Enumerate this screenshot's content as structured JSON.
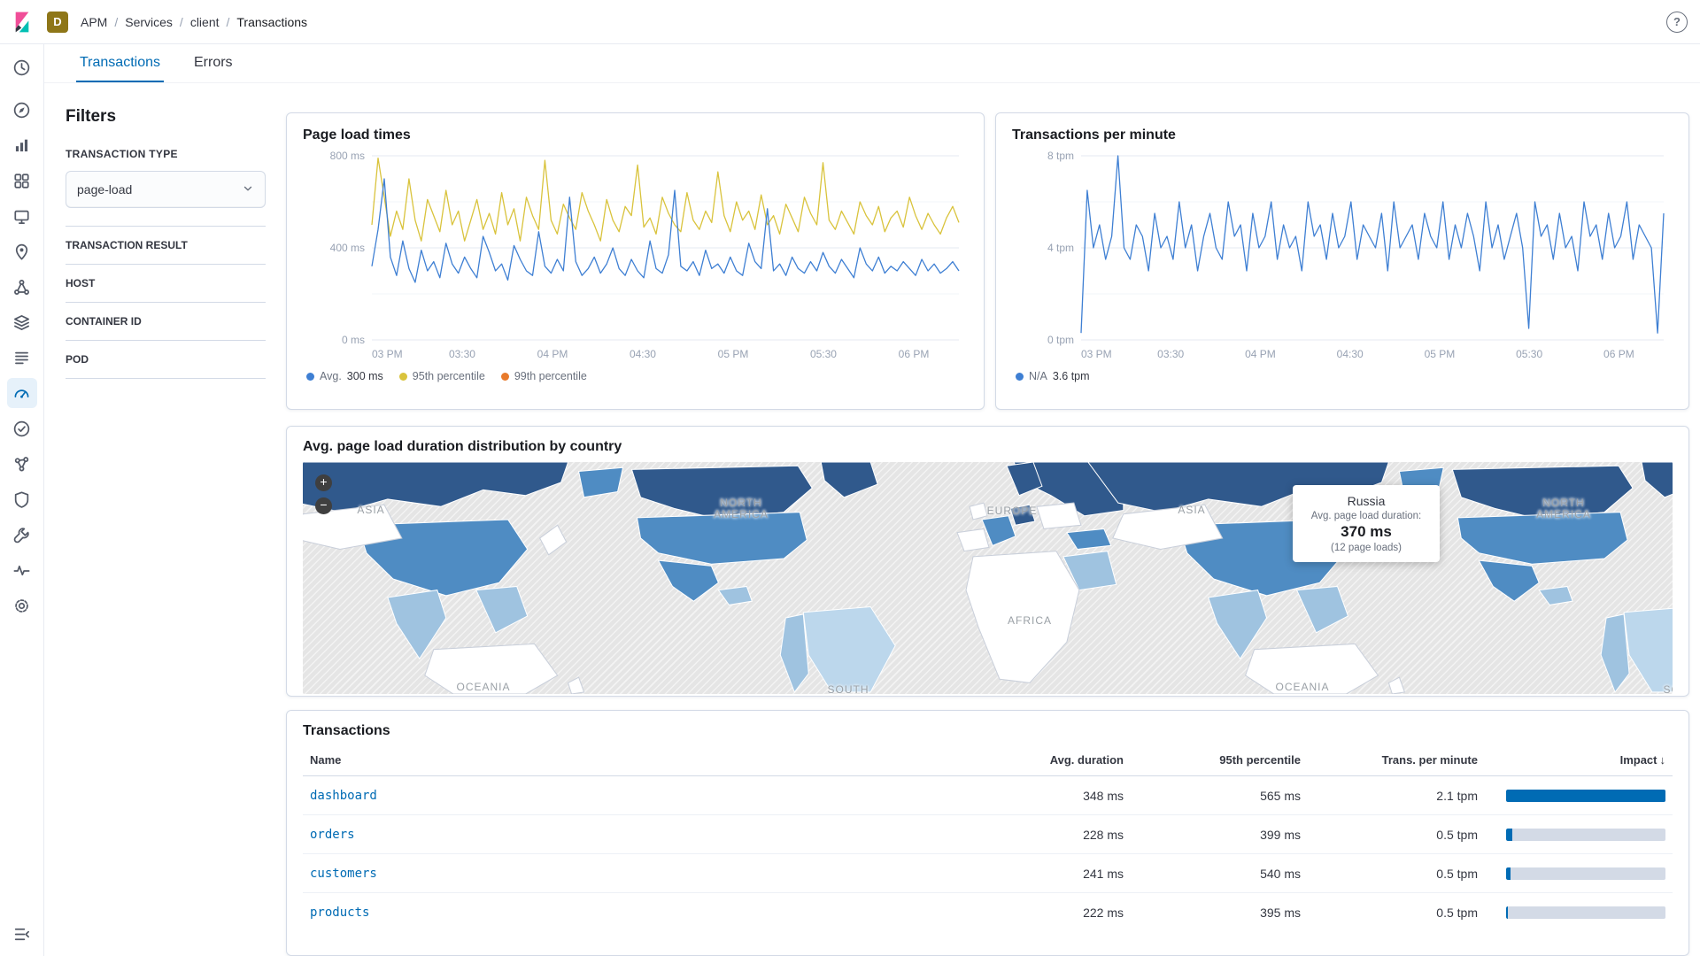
{
  "topbar": {
    "breadcrumb": [
      "APM",
      "Services",
      "client",
      "Transactions"
    ],
    "separator": "/",
    "space_badge": "D",
    "space_badge_color": "#8E7618",
    "help_glyph": "?"
  },
  "sidebar": {
    "top": [
      {
        "id": "recently-viewed",
        "icon": "clock"
      }
    ],
    "apps": [
      {
        "id": "discover",
        "icon": "discover"
      },
      {
        "id": "visualize",
        "icon": "visualize"
      },
      {
        "id": "dashboard",
        "icon": "dashboard"
      },
      {
        "id": "canvas",
        "icon": "canvas"
      },
      {
        "id": "maps",
        "icon": "maps"
      },
      {
        "id": "machine-learning",
        "icon": "ml"
      },
      {
        "id": "infrastructure",
        "icon": "infrastructure"
      },
      {
        "id": "logs",
        "icon": "logs"
      },
      {
        "id": "apm",
        "icon": "apm",
        "active": true
      },
      {
        "id": "uptime",
        "icon": "uptime"
      },
      {
        "id": "graph",
        "icon": "graph"
      },
      {
        "id": "siem",
        "icon": "siem"
      },
      {
        "id": "dev-tools",
        "icon": "devtools"
      },
      {
        "id": "monitoring",
        "icon": "monitoring"
      },
      {
        "id": "management",
        "icon": "management"
      }
    ],
    "bottom": [
      {
        "id": "collapse-nav",
        "icon": "collapse"
      }
    ]
  },
  "tabs": [
    {
      "label": "Transactions",
      "active": true
    },
    {
      "label": "Errors",
      "active": false
    }
  ],
  "filters": {
    "title": "Filters",
    "type_label": "TRANSACTION TYPE",
    "type_value": "page-load",
    "sections": [
      "TRANSACTION RESULT",
      "HOST",
      "CONTAINER ID",
      "POD"
    ]
  },
  "chart_data": [
    {
      "id": "pageload",
      "type": "line",
      "title": "Page load times",
      "ylim": [
        0,
        800
      ],
      "y_ticks": [
        {
          "v": 0,
          "label": "0 ms"
        },
        {
          "v": 400,
          "label": "400 ms"
        },
        {
          "v": 800,
          "label": "800 ms"
        }
      ],
      "y_minor": [
        200,
        600
      ],
      "x_ticks": [
        {
          "f": 0,
          "label": "03 PM"
        },
        {
          "f": 0.1538,
          "label": "03:30"
        },
        {
          "f": 0.3077,
          "label": "04 PM"
        },
        {
          "f": 0.4615,
          "label": "04:30"
        },
        {
          "f": 0.6154,
          "label": "05 PM"
        },
        {
          "f": 0.7692,
          "label": "05:30"
        },
        {
          "f": 0.9231,
          "label": "06 PM"
        }
      ],
      "legend": [
        {
          "label": "Avg.",
          "value": "300 ms",
          "color": "#3E7FD3"
        },
        {
          "label": "95th percentile",
          "value": "",
          "color": "#D9C33C"
        },
        {
          "label": "99th percentile",
          "value": "",
          "color": "#E87A2B"
        }
      ],
      "series": [
        {
          "name": "95th percentile",
          "color": "#D9C33C",
          "values": [
            500,
            790,
            620,
            450,
            560,
            480,
            700,
            520,
            430,
            610,
            540,
            470,
            650,
            500,
            560,
            430,
            520,
            610,
            480,
            550,
            460,
            640,
            500,
            570,
            430,
            620,
            540,
            480,
            780,
            520,
            460,
            590,
            530,
            480,
            640,
            560,
            500,
            430,
            610,
            520,
            470,
            580,
            540,
            760,
            490,
            530,
            460,
            620,
            550,
            500,
            470,
            640,
            520,
            480,
            560,
            510,
            730,
            540,
            470,
            600,
            520,
            560,
            480,
            630,
            500,
            540,
            460,
            590,
            530,
            470,
            620,
            550,
            500,
            770,
            520,
            480,
            560,
            510,
            460,
            600,
            540,
            500,
            580,
            470,
            530,
            560,
            490,
            620,
            540,
            480,
            550,
            500,
            460,
            530,
            580,
            510
          ]
        },
        {
          "name": "Avg.",
          "color": "#3E7FD3",
          "values": [
            320,
            480,
            700,
            360,
            280,
            430,
            310,
            250,
            390,
            300,
            340,
            270,
            420,
            330,
            290,
            360,
            310,
            270,
            450,
            380,
            300,
            330,
            260,
            410,
            350,
            300,
            280,
            470,
            320,
            290,
            350,
            300,
            620,
            340,
            280,
            310,
            360,
            290,
            330,
            400,
            310,
            280,
            350,
            300,
            270,
            430,
            310,
            290,
            370,
            650,
            320,
            300,
            340,
            280,
            390,
            310,
            330,
            290,
            360,
            300,
            280,
            420,
            340,
            310,
            570,
            300,
            330,
            280,
            360,
            310,
            290,
            340,
            300,
            380,
            320,
            290,
            350,
            310,
            270,
            400,
            330,
            300,
            360,
            290,
            320,
            300,
            340,
            310,
            280,
            350,
            300,
            330,
            290,
            310,
            340,
            300
          ]
        },
        {
          "name": "99th percentile",
          "color": "#E87A2B",
          "values": []
        }
      ]
    },
    {
      "id": "tpm",
      "type": "line",
      "title": "Transactions per minute",
      "ylim": [
        0,
        8
      ],
      "y_ticks": [
        {
          "v": 0,
          "label": "0 tpm"
        },
        {
          "v": 4,
          "label": "4 tpm"
        },
        {
          "v": 8,
          "label": "8 tpm"
        }
      ],
      "y_minor": [
        2,
        6
      ],
      "x_ticks": [
        {
          "f": 0,
          "label": "03 PM"
        },
        {
          "f": 0.1538,
          "label": "03:30"
        },
        {
          "f": 0.3077,
          "label": "04 PM"
        },
        {
          "f": 0.4615,
          "label": "04:30"
        },
        {
          "f": 0.6154,
          "label": "05 PM"
        },
        {
          "f": 0.7692,
          "label": "05:30"
        },
        {
          "f": 0.9231,
          "label": "06 PM"
        }
      ],
      "legend": [
        {
          "label": "N/A",
          "value": "3.6 tpm",
          "color": "#3E7FD3"
        }
      ],
      "series": [
        {
          "name": "N/A",
          "color": "#3E7FD3",
          "values": [
            0.3,
            6.5,
            4,
            5,
            3.5,
            4.5,
            8,
            4,
            3.5,
            5,
            4.5,
            3,
            5.5,
            4,
            4.5,
            3.5,
            6,
            4,
            5,
            3,
            4.5,
            5.5,
            4,
            3.5,
            6,
            4.5,
            5,
            3,
            5.5,
            4,
            4.5,
            6,
            3.5,
            5,
            4,
            4.5,
            3,
            6,
            4.5,
            5,
            3.5,
            5.5,
            4,
            4.5,
            6,
            3.5,
            5,
            4.5,
            4,
            5.5,
            3,
            6,
            4,
            4.5,
            5,
            3.5,
            5.5,
            4.5,
            4,
            6,
            3.5,
            5,
            4,
            5.5,
            4.5,
            3,
            6,
            4,
            5,
            3.5,
            4.5,
            5.5,
            4,
            0.5,
            6,
            4.5,
            5,
            3.5,
            5.5,
            4,
            4.5,
            3,
            6,
            4.5,
            5,
            3.5,
            5.5,
            4,
            4.5,
            6,
            3.5,
            5,
            4.5,
            4,
            0.3,
            5.5
          ]
        }
      ]
    },
    {
      "id": "country-map",
      "type": "choropleth",
      "title": "Avg. page load duration distribution by country",
      "labels": {
        "asia": "ASIA",
        "north_america": "NORTH AMERICA",
        "europe": "EUROPE",
        "africa": "AFRICA",
        "south_america": "SOUTH AMERICA",
        "oceania": "OCEANIA"
      },
      "tooltip": {
        "country": "Russia",
        "metric": "Avg. page load duration:",
        "value": "370 ms",
        "note": "(12 page loads)"
      },
      "zoom_in": "+",
      "zoom_out": "−",
      "shade_colors": {
        "dark": "#30598C",
        "medium": "#4F8CC3",
        "light": "#9FC3E0",
        "lighter": "#BCD7EC",
        "none": "#FFFFFF"
      },
      "regions": [
        {
          "name": "Russia",
          "shade": "dark",
          "value": "370 ms"
        },
        {
          "name": "Canada",
          "shade": "dark"
        },
        {
          "name": "Greenland",
          "shade": "dark"
        },
        {
          "name": "Scandinavia",
          "shade": "dark"
        },
        {
          "name": "United States",
          "shade": "medium"
        },
        {
          "name": "China",
          "shade": "medium"
        },
        {
          "name": "Mexico",
          "shade": "medium"
        },
        {
          "name": "India",
          "shade": "light"
        },
        {
          "name": "Saudi Arabia",
          "shade": "light"
        },
        {
          "name": "Brazil",
          "shade": "lighter"
        },
        {
          "name": "Africa",
          "shade": "none"
        },
        {
          "name": "Australia",
          "shade": "none"
        }
      ]
    }
  ],
  "table": {
    "title": "Transactions",
    "columns": [
      "Name",
      "Avg. duration",
      "95th percentile",
      "Trans. per minute",
      "Impact"
    ],
    "sorted_by": "Impact",
    "sort_arrow": "↓",
    "rows": [
      {
        "name": "dashboard",
        "avg": "348 ms",
        "p95": "565 ms",
        "tpm": "2.1 tpm",
        "impact": 100
      },
      {
        "name": "orders",
        "avg": "228 ms",
        "p95": "399 ms",
        "tpm": "0.5 tpm",
        "impact": 4
      },
      {
        "name": "customers",
        "avg": "241 ms",
        "p95": "540 ms",
        "tpm": "0.5 tpm",
        "impact": 3
      },
      {
        "name": "products",
        "avg": "222 ms",
        "p95": "395 ms",
        "tpm": "0.5 tpm",
        "impact": 1
      }
    ]
  }
}
